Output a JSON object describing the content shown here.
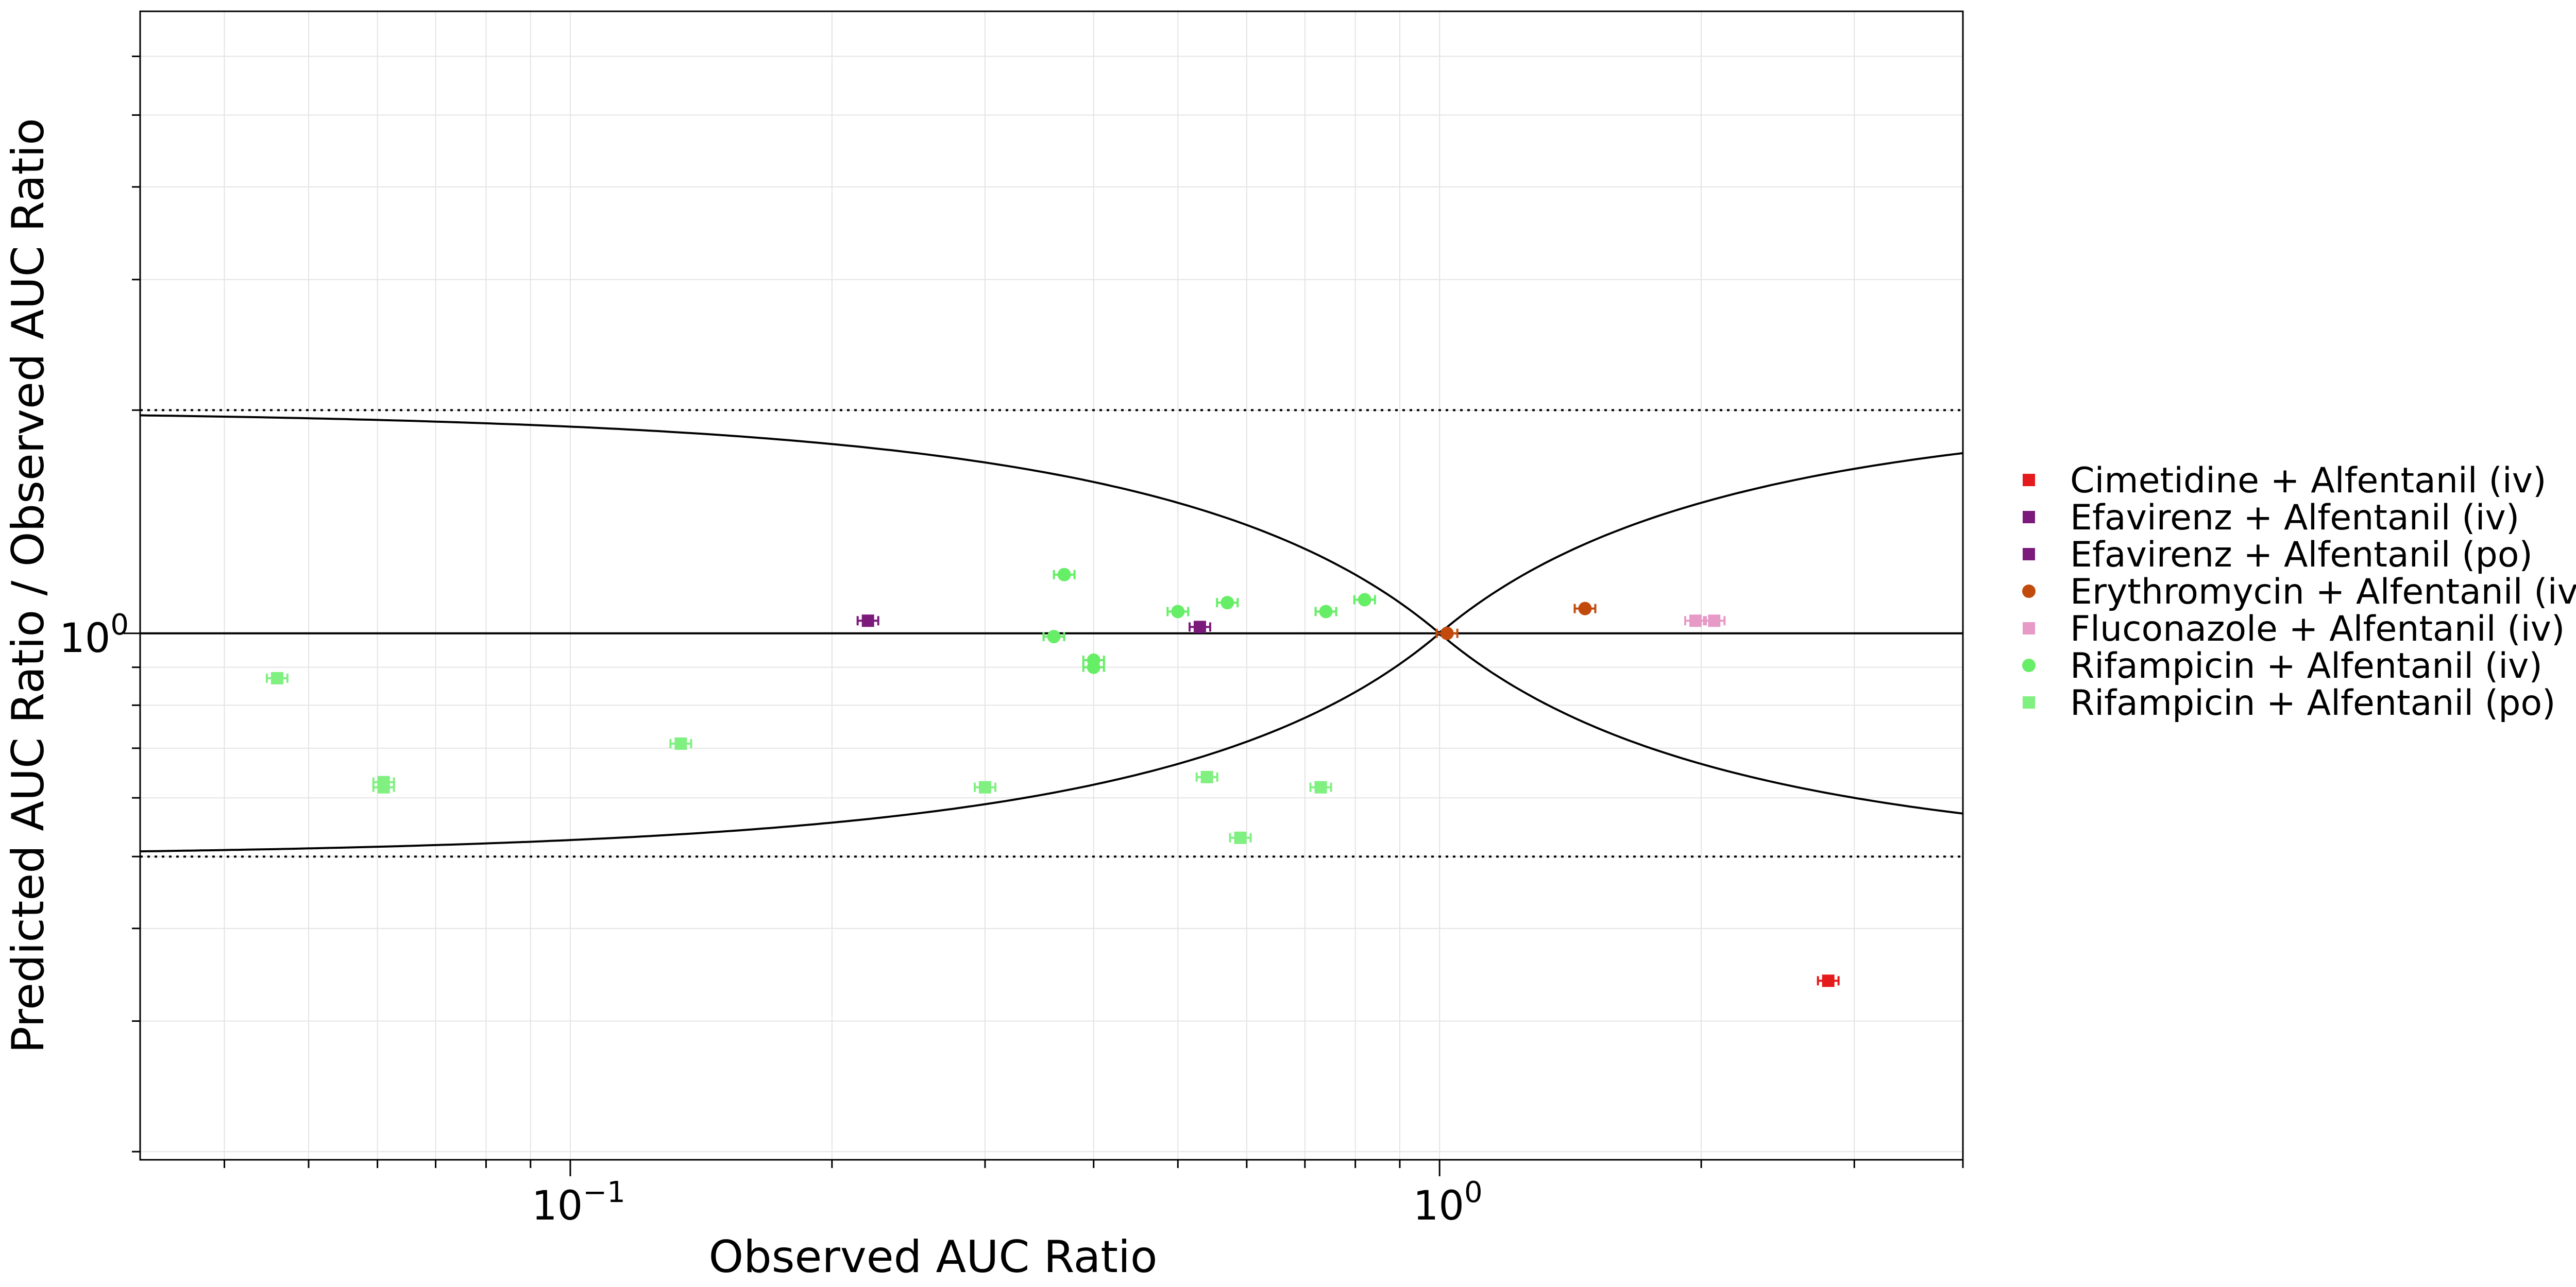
{
  "chart_data": {
    "type": "scatter",
    "title": "",
    "xlabel": "Observed AUC Ratio",
    "ylabel": "Predicted AUC Ratio / Observed AUC Ratio",
    "x_scale": "log",
    "y_scale": "log",
    "xlim": [
      0.032,
      4.0
    ],
    "ylim": [
      0.195,
      6.9
    ],
    "x_ticks": [
      {
        "value": 0.1,
        "base": "10",
        "exp": "−1"
      },
      {
        "value": 1.0,
        "base": "10",
        "exp": "0"
      }
    ],
    "y_ticks": [
      {
        "value": 1.0,
        "base": "10",
        "exp": "0"
      }
    ],
    "grid": true,
    "legend_position": "right",
    "reference_lines": {
      "unity": 1.0,
      "twofold_upper": 2.0,
      "twofold_lower": 0.5,
      "guest_limit_delta": 1
    },
    "series": [
      {
        "name": "Cimetidine + Alfentanil (iv)",
        "color": "#e41a1c",
        "marker": "square",
        "points": [
          [
            2.8,
            0.34
          ]
        ]
      },
      {
        "name": "Efavirenz + Alfentanil (iv)",
        "color": "#7b1a7b",
        "marker": "square",
        "points": [
          [
            0.22,
            1.04
          ]
        ]
      },
      {
        "name": "Efavirenz + Alfentanil (po)",
        "color": "#7b1a7b",
        "marker": "square",
        "points": [
          [
            0.53,
            1.02
          ]
        ]
      },
      {
        "name": "Erythromycin + Alfentanil (iv)",
        "color": "#c14a0c",
        "marker": "circle",
        "points": [
          [
            1.02,
            1.0
          ],
          [
            1.47,
            1.08
          ]
        ]
      },
      {
        "name": "Fluconazole + Alfentanil (iv)",
        "color": "#e89ac7",
        "marker": "square",
        "points": [
          [
            1.97,
            1.04
          ],
          [
            2.07,
            1.04
          ]
        ]
      },
      {
        "name": "Rifampicin + Alfentanil (iv)",
        "color": "#66ee66",
        "marker": "circle",
        "points": [
          [
            0.37,
            1.2
          ],
          [
            0.36,
            0.99
          ],
          [
            0.4,
            0.92
          ],
          [
            0.4,
            0.9
          ],
          [
            0.5,
            1.07
          ],
          [
            0.57,
            1.1
          ],
          [
            0.74,
            1.07
          ],
          [
            0.82,
            1.11
          ]
        ]
      },
      {
        "name": "Rifampicin + Alfentanil (po)",
        "color": "#80f080",
        "marker": "square",
        "points": [
          [
            0.046,
            0.87
          ],
          [
            0.061,
            0.63
          ],
          [
            0.061,
            0.62
          ],
          [
            0.134,
            0.71
          ],
          [
            0.3,
            0.62
          ],
          [
            0.54,
            0.64
          ],
          [
            0.59,
            0.53
          ],
          [
            0.73,
            0.62
          ]
        ]
      }
    ]
  }
}
